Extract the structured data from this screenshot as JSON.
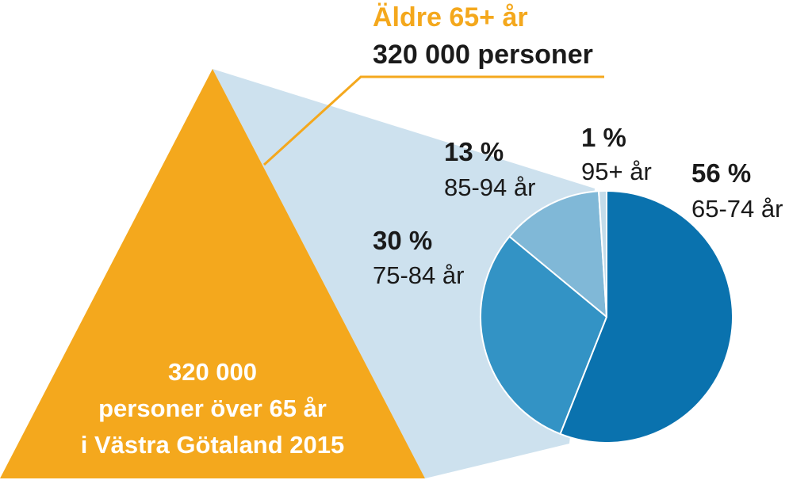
{
  "header": {
    "title": "Äldre 65+ år",
    "subtitle": "320 000 personer"
  },
  "pyramid": {
    "lines": [
      "320 000",
      "personer över 65 år",
      "i Västra Götaland 2015"
    ]
  },
  "colors": {
    "accent": "#F4A81D",
    "zoom": "#CDE1EE",
    "text_dark": "#1a1a1a",
    "text_white": "#ffffff",
    "slice_65_74": "#0A72AE",
    "slice_75_84": "#3393C5",
    "slice_85_94": "#80B8D7",
    "slice_95_plus": "#C4DCEA"
  },
  "chart_data": {
    "type": "pie",
    "categories": [
      "65-74 år",
      "75-84 år",
      "85-94 år",
      "95+ år"
    ],
    "values": [
      56,
      30,
      13,
      1
    ],
    "value_labels": [
      "56 %",
      "30 %",
      "13 %",
      "1 %"
    ],
    "start": "top",
    "direction": "clockwise"
  }
}
